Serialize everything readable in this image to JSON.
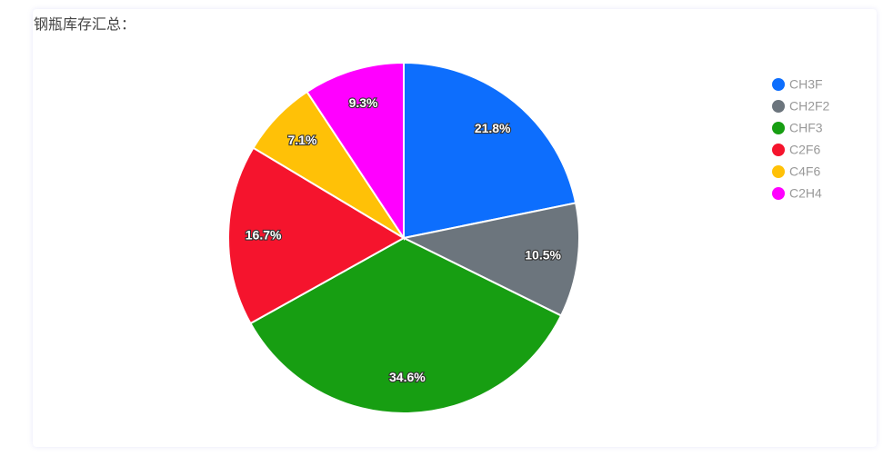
{
  "chart_data": {
    "type": "pie",
    "title": "钢瓶库存汇总：",
    "categories": [
      "CH3F",
      "CH2F2",
      "CHF3",
      "C2F6",
      "C4F6",
      "C2H4"
    ],
    "values": [
      21.8,
      10.5,
      34.6,
      16.7,
      7.1,
      9.3
    ],
    "value_labels": [
      "21.8%",
      "10.5%",
      "34.6%",
      "16.7%",
      "7.1%",
      "9.3%"
    ],
    "colors": [
      "#0d6efd",
      "#6c757d",
      "#179e12",
      "#f5142d",
      "#ffc107",
      "#ff00ff"
    ],
    "legend": "top-right"
  }
}
